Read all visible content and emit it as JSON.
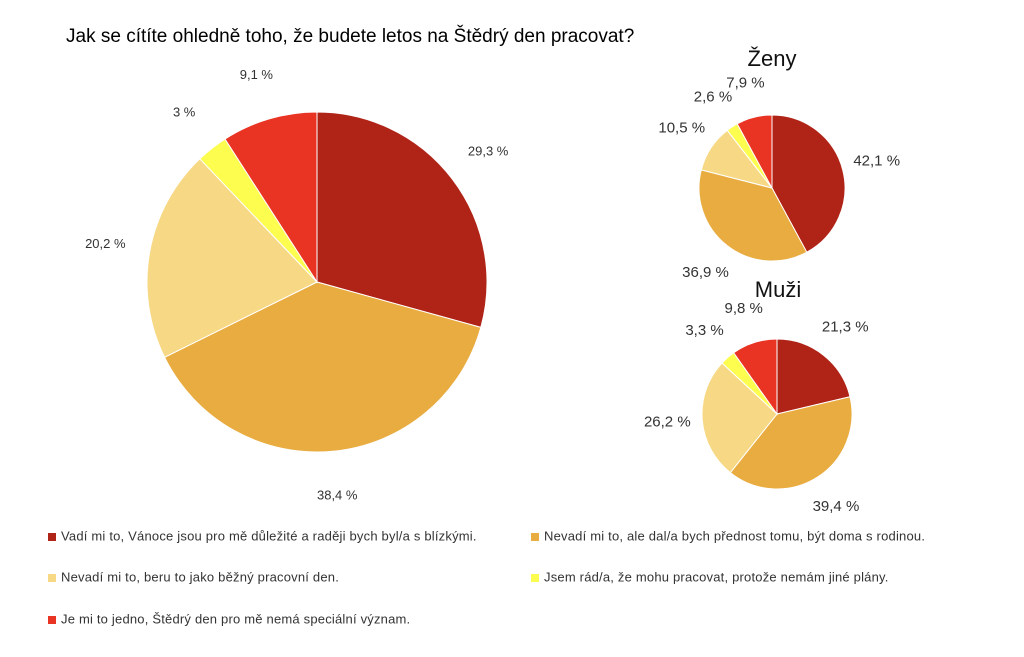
{
  "chart_data": [
    {
      "type": "pie",
      "title": "Jak se cítíte ohledně toho, že budete letos na Štědrý den pracovat?",
      "categories": [
        "Vadí mi to, Vánoce jsou pro mě důležité a raději bych byl/a s blízkými.",
        "Nevadí mi to, ale dal/a bych přednost tomu, být doma s rodinou.",
        "Nevadí mi to, beru to jako běžný pracovní den.",
        "Jsem rád/a, že mohu pracovat, protože nemám jiné plány.",
        "Je mi to jedno, Štědrý den pro mě nemá speciální význam."
      ],
      "values": [
        29.3,
        38.4,
        20.2,
        3,
        9.1
      ],
      "value_labels": [
        "29,3 %",
        "38,4 %",
        "20,2 %",
        "3 %",
        "9,1 %"
      ],
      "colors": [
        "#b02418",
        "#e8ac40",
        "#f7d884",
        "#fdfd50",
        "#e93323"
      ]
    },
    {
      "type": "pie",
      "title": "Ženy",
      "values": [
        42.1,
        36.9,
        10.5,
        2.6,
        7.9
      ],
      "value_labels": [
        "42,1 %",
        "36,9 %",
        "10,5 %",
        "2,6 %",
        "7,9 %"
      ],
      "colors": [
        "#b02418",
        "#e8ac40",
        "#f7d884",
        "#fdfd50",
        "#e93323"
      ]
    },
    {
      "type": "pie",
      "title": "Muži",
      "values": [
        21.3,
        39.4,
        26.2,
        3.3,
        9.8
      ],
      "value_labels": [
        "21,3 %",
        "39,4 %",
        "26,2 %",
        "3,3 %",
        "9,8 %"
      ],
      "colors": [
        "#b02418",
        "#e8ac40",
        "#f7d884",
        "#fdfd50",
        "#e93323"
      ]
    }
  ]
}
